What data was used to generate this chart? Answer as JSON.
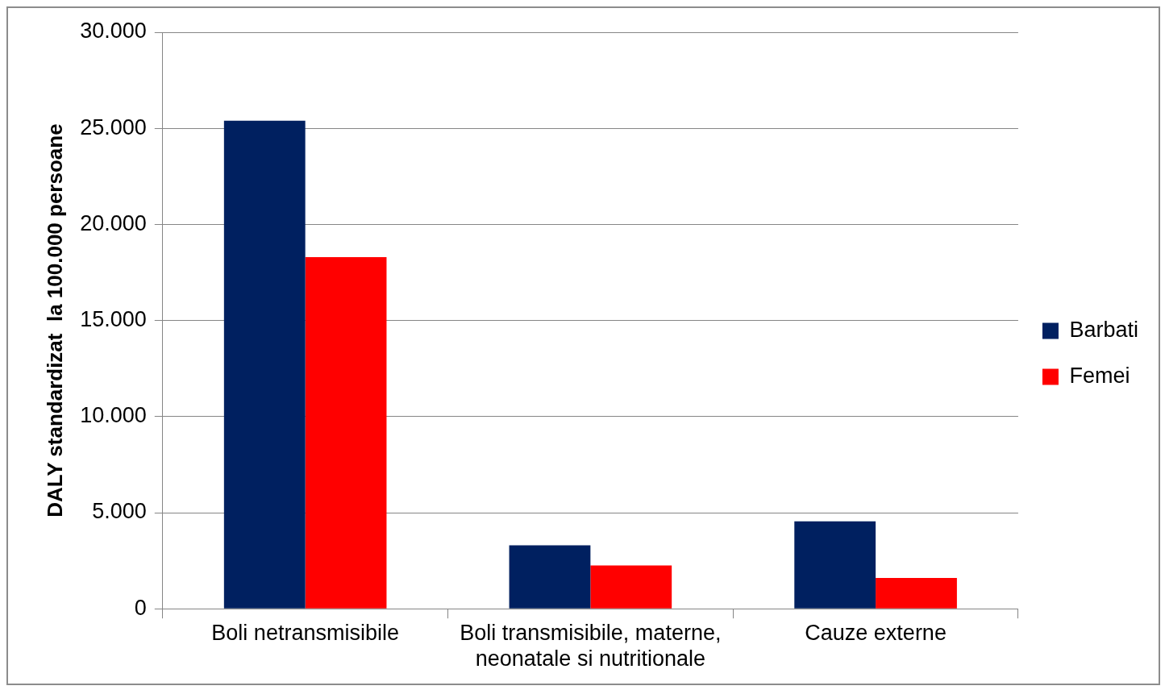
{
  "chart_data": {
    "type": "bar",
    "ylabel": "DALY standardizat  la 100.000 persoane",
    "categories": [
      "Boli netransmisibile",
      "Boli transmisibile, materne, neonatale si nutritionale",
      "Cauze externe"
    ],
    "series": [
      {
        "name": "Barbati",
        "color": "#002060",
        "values": [
          25400,
          3300,
          4550
        ]
      },
      {
        "name": "Femei",
        "color": "#ff0000",
        "values": [
          18300,
          2250,
          1600
        ]
      }
    ],
    "ylim": [
      0,
      30000
    ],
    "yticks": [
      {
        "value": 0,
        "label": "0"
      },
      {
        "value": 5000,
        "label": "5.000"
      },
      {
        "value": 10000,
        "label": "10.000"
      },
      {
        "value": 15000,
        "label": "15.000"
      },
      {
        "value": 20000,
        "label": "20.000"
      },
      {
        "value": 25000,
        "label": "25.000"
      },
      {
        "value": 30000,
        "label": "30.000"
      }
    ],
    "grid": "y",
    "legend": "right"
  }
}
